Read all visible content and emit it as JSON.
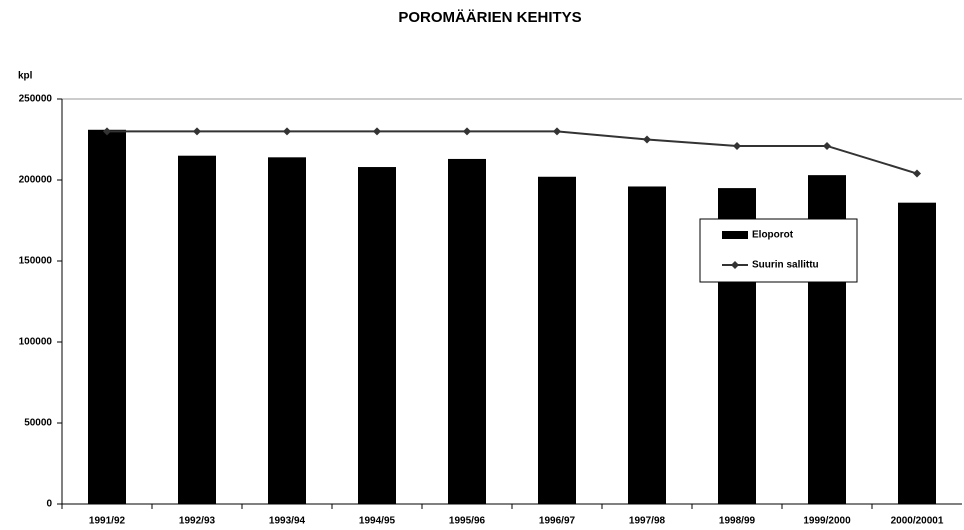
{
  "chart_data": {
    "type": "combo",
    "title": "POROMÄÄRIEN KEHITYS",
    "y_label": "kpl",
    "categories": [
      "1991/92",
      "1992/93",
      "1993/94",
      "1994/95",
      "1995/96",
      "1996/97",
      "1997/98",
      "1998/99",
      "1999/2000",
      "2000/20001"
    ],
    "series": [
      {
        "name": "Eloporot",
        "type": "bar",
        "color": "#000000",
        "values": [
          231000,
          215000,
          214000,
          208000,
          213000,
          202000,
          196000,
          195000,
          203000,
          186000
        ]
      },
      {
        "name": "Suurin sallittu",
        "type": "line",
        "color": "#333333",
        "values": [
          230000,
          230000,
          230000,
          230000,
          230000,
          230000,
          225000,
          221000,
          221000,
          204000
        ]
      }
    ],
    "ylim": [
      0,
      250000
    ],
    "yticks": [
      0,
      50000,
      100000,
      150000,
      200000,
      250000
    ],
    "grid": false,
    "legend": "right"
  }
}
